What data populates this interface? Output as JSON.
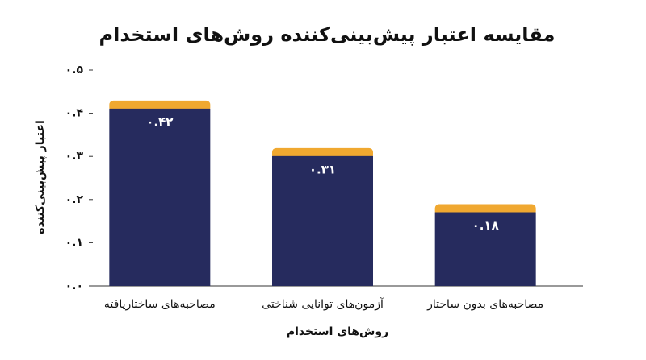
{
  "chart_data": {
    "type": "bar",
    "title": "مقایسه اعتبار پیش‌بینی‌کننده روش‌های استخدام",
    "x_label": "روش‌های استخدام",
    "y_label": "اعتبار پیش‌بینی‌کننده",
    "categories": [
      "مصاحبه‌های ساختاریافته",
      "آزمون‌های توانایی شناختی",
      "مصاحبه‌های بدون ساختار"
    ],
    "values": [
      0.42,
      0.31,
      0.18
    ],
    "value_labels": [
      "۰.۴۲",
      "۰.۳۱",
      "۰.۱۸"
    ],
    "color": "#262b5e",
    "ylim": [
      0,
      0.5
    ],
    "yticks": [
      {
        "value": 0,
        "label": "۰.۰"
      },
      {
        "value": 0.1,
        "label": "۰.۱"
      },
      {
        "value": 0.2,
        "label": "۰.۲"
      },
      {
        "value": 0.3,
        "label": "۰.۳"
      },
      {
        "value": 0.4,
        "label": "۰.۴"
      },
      {
        "value": 0.5,
        "label": "۰.۵"
      }
    ],
    "grid": false
  }
}
